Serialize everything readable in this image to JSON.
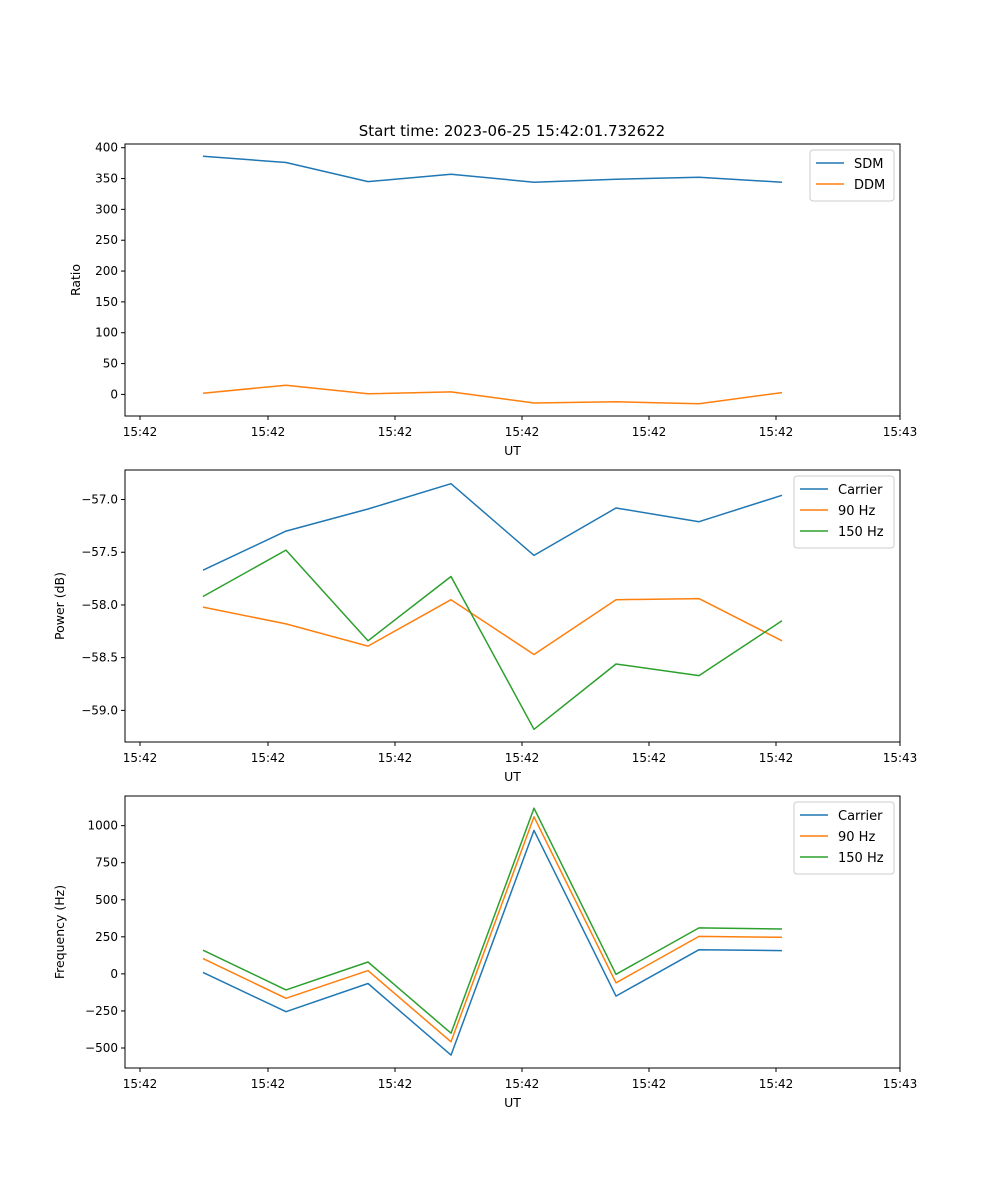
{
  "figure": {
    "title": "Start time: 2023-06-25 15:42:01.732622"
  },
  "chart_data": [
    {
      "type": "line",
      "xlabel": "UT",
      "ylabel": "Ratio",
      "xticks": [
        "15:42",
        "15:42",
        "15:42",
        "15:42",
        "15:42",
        "15:42",
        "15:42",
        "15:43"
      ],
      "yticks": [
        0,
        50,
        100,
        150,
        200,
        250,
        300,
        350,
        400
      ],
      "ylim": [
        -35,
        406
      ],
      "legend_position": "top-right",
      "series": [
        {
          "name": "SDM",
          "color": "#1f77b4",
          "values": [
            386,
            376,
            345,
            357,
            344,
            349,
            352,
            344
          ]
        },
        {
          "name": "DDM",
          "color": "#ff7f0e",
          "values": [
            2,
            15,
            1,
            4,
            -14,
            -12,
            -15,
            3
          ]
        }
      ]
    },
    {
      "type": "line",
      "xlabel": "UT",
      "ylabel": "Power (dB)",
      "xticks": [
        "15:42",
        "15:42",
        "15:42",
        "15:42",
        "15:42",
        "15:42",
        "15:42",
        "15:43"
      ],
      "yticks": [
        -59.0,
        -58.5,
        -58.0,
        -57.5,
        -57.0
      ],
      "ytick_labels": [
        "−59.0",
        "−58.5",
        "−58.0",
        "−57.5",
        "−57.0"
      ],
      "ylim": [
        -59.3,
        -56.72
      ],
      "legend_position": "top-right",
      "series": [
        {
          "name": "Carrier",
          "color": "#1f77b4",
          "values": [
            -57.67,
            -57.3,
            -57.09,
            -56.85,
            -57.53,
            -57.08,
            -57.21,
            -56.96
          ]
        },
        {
          "name": "90 Hz",
          "color": "#ff7f0e",
          "values": [
            -58.02,
            -58.18,
            -58.39,
            -57.95,
            -58.47,
            -57.95,
            -57.94,
            -58.34
          ]
        },
        {
          "name": "150 Hz",
          "color": "#2ca02c",
          "values": [
            -57.92,
            -57.48,
            -58.34,
            -57.73,
            -59.18,
            -58.56,
            -58.67,
            -58.15
          ]
        }
      ]
    },
    {
      "type": "line",
      "xlabel": "UT",
      "ylabel": "Frequency (Hz)",
      "xticks": [
        "15:42",
        "15:42",
        "15:42",
        "15:42",
        "15:42",
        "15:42",
        "15:42",
        "15:43"
      ],
      "yticks": [
        -500,
        -250,
        0,
        250,
        500,
        750,
        1000
      ],
      "ytick_labels": [
        "−500",
        "−250",
        "0",
        "250",
        "500",
        "750",
        "1000"
      ],
      "ylim": [
        -635,
        1200
      ],
      "legend_position": "top-right",
      "series": [
        {
          "name": "Carrier",
          "color": "#1f77b4",
          "values": [
            10,
            -255,
            -65,
            -548,
            968,
            -150,
            163,
            157
          ]
        },
        {
          "name": "90 Hz",
          "color": "#ff7f0e",
          "values": [
            103,
            -165,
            22,
            -458,
            1060,
            -60,
            253,
            247
          ]
        },
        {
          "name": "150 Hz",
          "color": "#2ca02c",
          "values": [
            160,
            -108,
            80,
            -400,
            1118,
            -3,
            310,
            303
          ]
        }
      ]
    }
  ]
}
